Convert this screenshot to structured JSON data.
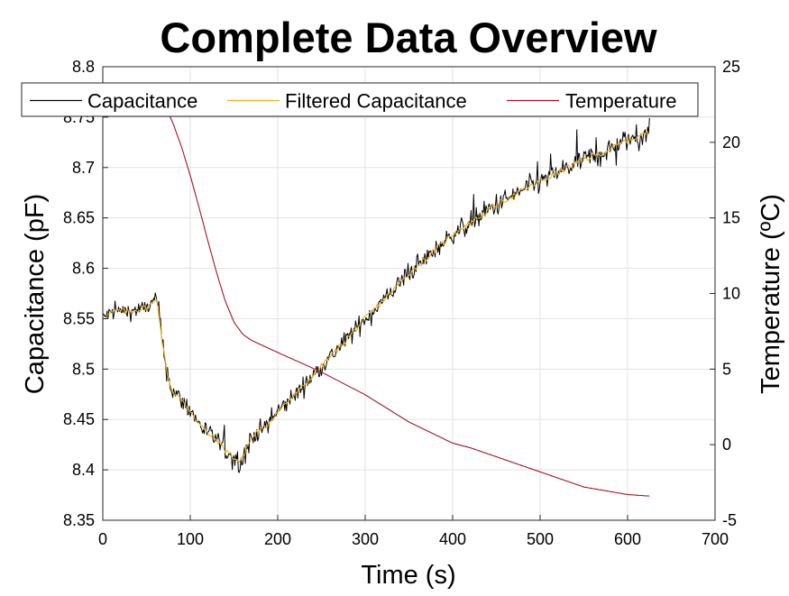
{
  "chart_data": {
    "type": "line",
    "title": "Complete Data Overview",
    "xlabel": "Time (s)",
    "ylabel_left": "Capacitance (pF)",
    "ylabel_right": "Temperature (ºC)",
    "xlim": [
      0,
      700
    ],
    "ylim_left": [
      8.35,
      8.8
    ],
    "ylim_right": [
      -5,
      25
    ],
    "xticks": [
      "0",
      "100",
      "200",
      "300",
      "400",
      "500",
      "600",
      "700"
    ],
    "yticks_left": [
      "8.35",
      "8.4",
      "8.45",
      "8.5",
      "8.55",
      "8.6",
      "8.65",
      "8.7",
      "8.75",
      "8.8"
    ],
    "yticks_right": [
      "-5",
      "0",
      "5",
      "10",
      "15",
      "20",
      "25"
    ],
    "grid": true,
    "legend_position": "top",
    "series": [
      {
        "name": "Capacitance",
        "axis": "left",
        "color": "#000000",
        "style": "noisy",
        "x": [
          0,
          10,
          20,
          30,
          40,
          50,
          58,
          62,
          66,
          70,
          75,
          80,
          90,
          100,
          110,
          120,
          130,
          140,
          150,
          157,
          160,
          165,
          175,
          185,
          200,
          225,
          250,
          275,
          300,
          325,
          350,
          375,
          400,
          425,
          450,
          475,
          500,
          525,
          550,
          575,
          600,
          625
        ],
        "y": [
          8.551,
          8.556,
          8.558,
          8.557,
          8.559,
          8.561,
          8.566,
          8.571,
          8.54,
          8.515,
          8.49,
          8.478,
          8.469,
          8.459,
          8.446,
          8.436,
          8.43,
          8.42,
          8.412,
          8.408,
          8.412,
          8.424,
          8.437,
          8.442,
          8.458,
          8.479,
          8.503,
          8.526,
          8.55,
          8.572,
          8.595,
          8.614,
          8.634,
          8.648,
          8.663,
          8.675,
          8.686,
          8.697,
          8.708,
          8.716,
          8.727,
          8.735
        ]
      },
      {
        "name": "Filtered Capacitance",
        "axis": "left",
        "color": "#EDB120",
        "style": "smooth",
        "x": [
          0,
          10,
          20,
          30,
          40,
          50,
          58,
          62,
          66,
          70,
          75,
          80,
          90,
          100,
          110,
          120,
          130,
          140,
          150,
          157,
          160,
          165,
          175,
          185,
          200,
          225,
          250,
          275,
          300,
          325,
          350,
          375,
          400,
          425,
          450,
          475,
          500,
          525,
          550,
          575,
          600,
          625
        ],
        "y": [
          8.551,
          8.556,
          8.558,
          8.557,
          8.559,
          8.561,
          8.566,
          8.571,
          8.54,
          8.515,
          8.49,
          8.478,
          8.469,
          8.459,
          8.446,
          8.436,
          8.43,
          8.42,
          8.412,
          8.408,
          8.412,
          8.424,
          8.437,
          8.442,
          8.458,
          8.479,
          8.503,
          8.526,
          8.55,
          8.572,
          8.595,
          8.614,
          8.634,
          8.648,
          8.663,
          8.675,
          8.686,
          8.697,
          8.708,
          8.716,
          8.727,
          8.735
        ]
      },
      {
        "name": "Temperature",
        "axis": "right",
        "color": "#A2142F",
        "style": "line",
        "x": [
          73,
          80,
          90,
          100,
          110,
          120,
          130,
          140,
          150,
          160,
          170,
          200,
          250,
          300,
          350,
          400,
          420,
          450,
          500,
          550,
          600,
          625
        ],
        "y": [
          22.2,
          21.3,
          19.7,
          17.8,
          15.7,
          13.5,
          11.4,
          9.5,
          8.1,
          7.3,
          6.9,
          6.1,
          4.8,
          3.3,
          1.5,
          0.1,
          -0.2,
          -0.8,
          -1.8,
          -2.8,
          -3.3,
          -3.4
        ]
      }
    ]
  }
}
